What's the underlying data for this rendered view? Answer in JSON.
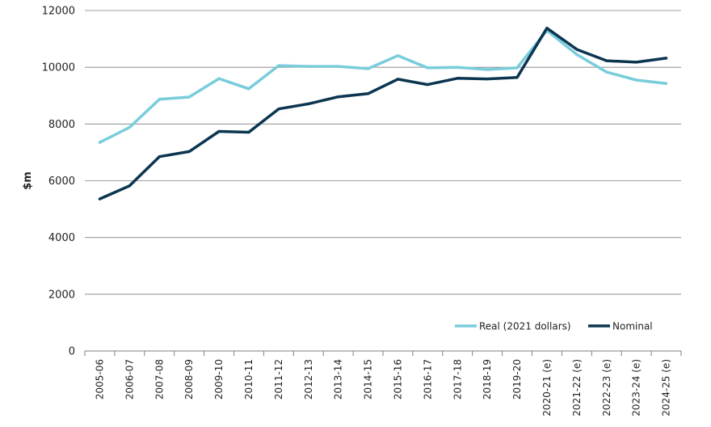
{
  "chart_data": {
    "type": "line",
    "title": "",
    "xlabel": "",
    "ylabel": "$m",
    "ylim": [
      0,
      12000
    ],
    "yticks": [
      0,
      2000,
      4000,
      6000,
      8000,
      10000,
      12000
    ],
    "grid": true,
    "legend_position": "bottom-right",
    "categories": [
      "2005-06",
      "2006-07",
      "2007-08",
      "2008-09",
      "2009-10",
      "2010-11",
      "2011-12",
      "2012-13",
      "2013-14",
      "2014-15",
      "2015-16",
      "2016-17",
      "2017-18",
      "2018-19",
      "2019-20",
      "2020-21 (e)",
      "2021-22 (e)",
      "2022-23 (e)",
      "2023-24 (e)",
      "2024-25 (e)"
    ],
    "series": [
      {
        "name": "Real (2021 dollars)",
        "color": "#79cddb",
        "values": [
          7350,
          7880,
          8870,
          8950,
          9600,
          9240,
          10060,
          10030,
          10030,
          9950,
          10410,
          9980,
          10000,
          9920,
          9980,
          11300,
          10450,
          9830,
          9550,
          9430
        ]
      },
      {
        "name": "Nominal",
        "color": "#0b3550",
        "values": [
          5360,
          5820,
          6850,
          7030,
          7740,
          7710,
          8530,
          8710,
          8960,
          9070,
          9580,
          9390,
          9610,
          9590,
          9640,
          11380,
          10630,
          10230,
          10180,
          10320
        ]
      }
    ]
  }
}
